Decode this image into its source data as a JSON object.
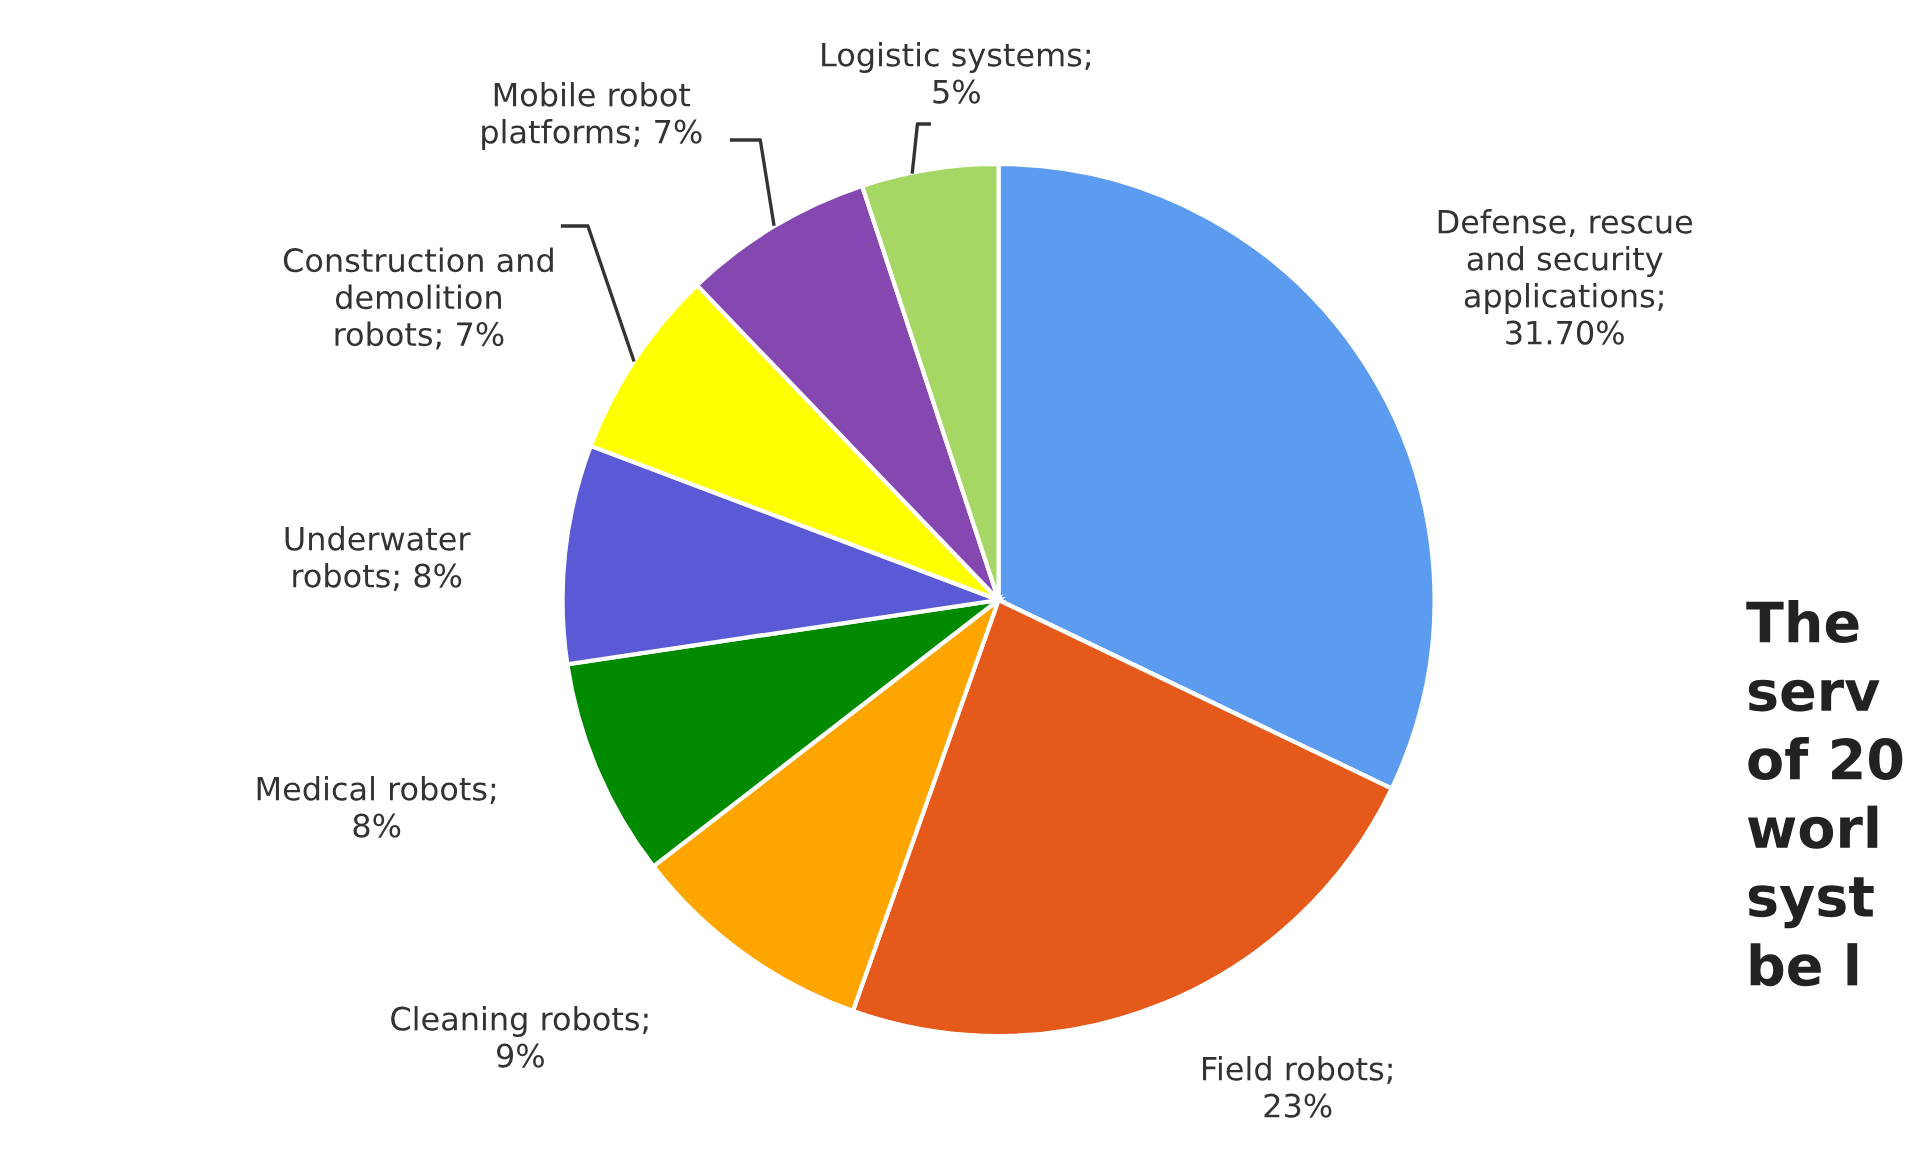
{
  "chart_data": {
    "type": "pie",
    "categories": [
      "Defense, rescue\nand security\napplications;\n31.70%",
      "Field robots;\n23%",
      "Cleaning robots;\n9%",
      "Medical robots;\n8%",
      "Underwater\nrobots; 8%",
      "Construction and\ndemolition\nrobots; 7%",
      "Mobile robot\nplatforms; 7%",
      "Logistic systems;\n5%"
    ],
    "values": [
      31.7,
      23,
      9,
      8,
      8,
      7,
      7,
      5
    ],
    "colors": [
      "#5b9bf0",
      "#e55a1a",
      "#ffa500",
      "#008a00",
      "#5a5ad6",
      "#ffff00",
      "#8548b0",
      "#a6d664"
    ],
    "annotations": [
      "The\nserv\nof 20\nworl\nsyst\nbe l"
    ]
  }
}
